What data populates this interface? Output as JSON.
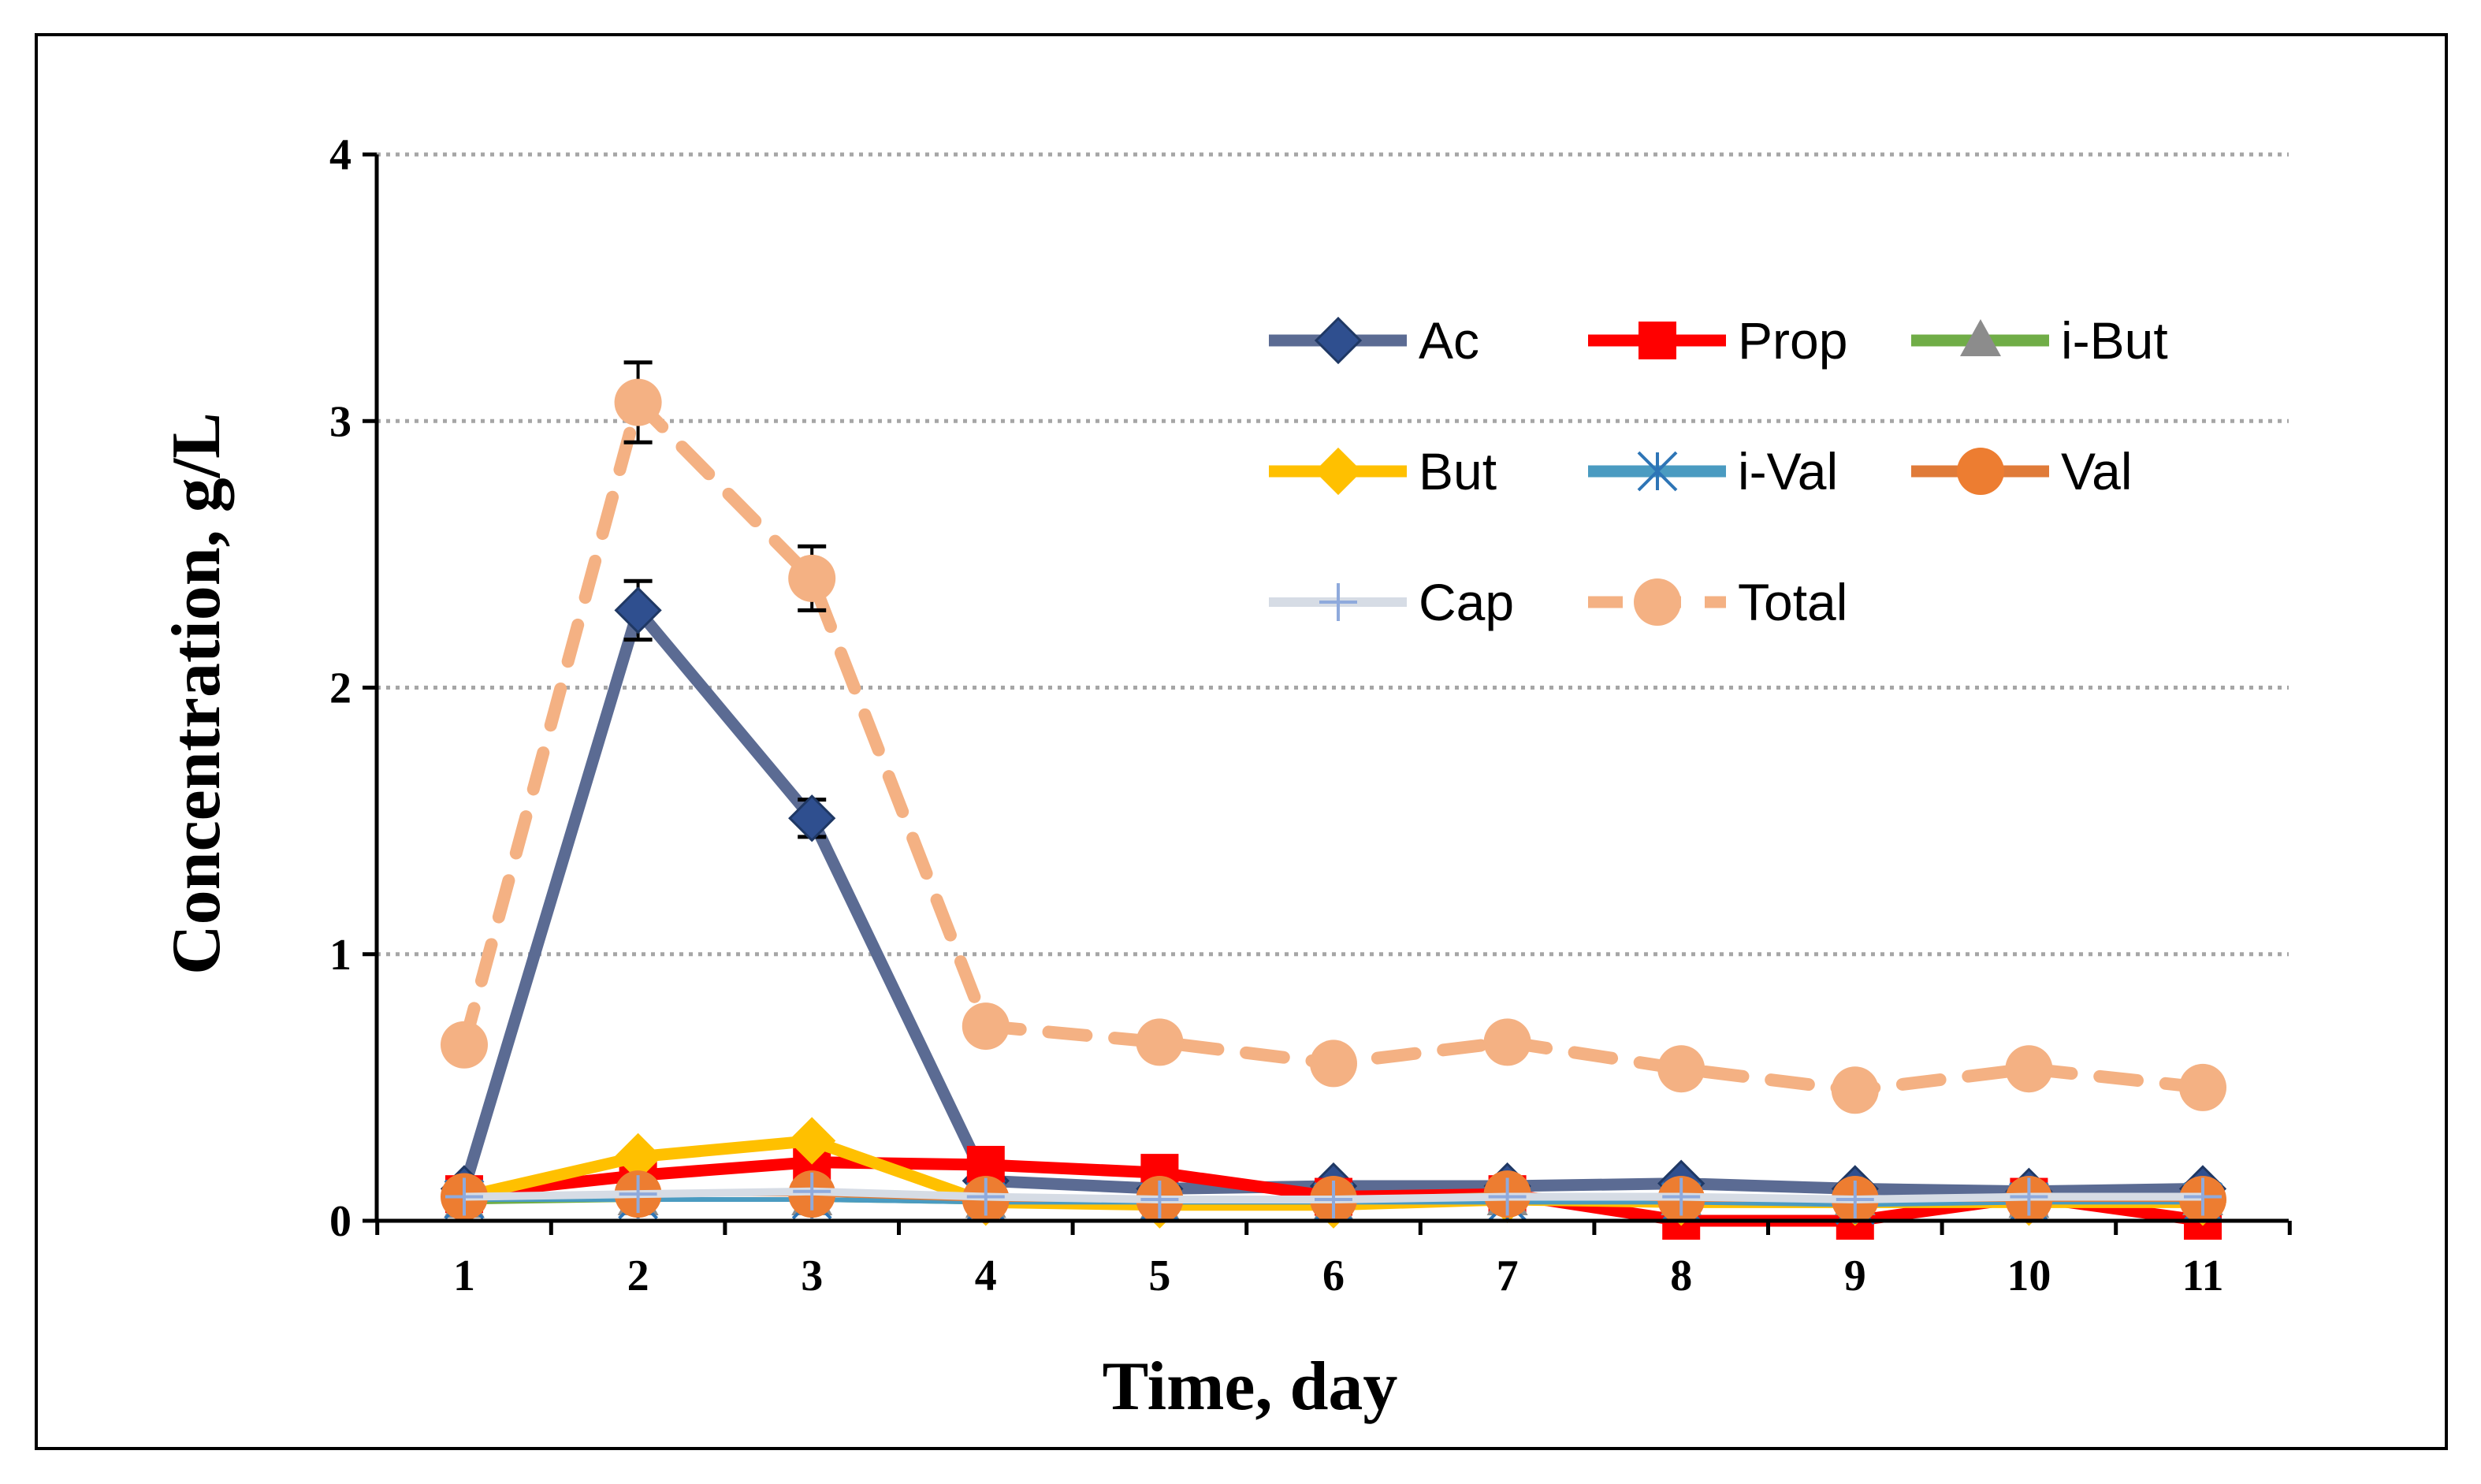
{
  "chart_data": {
    "type": "line",
    "title": "",
    "xlabel": "Time, day",
    "ylabel": "Concentration, g/L",
    "x": [
      1,
      2,
      3,
      4,
      5,
      6,
      7,
      8,
      9,
      10,
      11
    ],
    "x_tick_labels": [
      "1",
      "2",
      "3",
      "4",
      "5",
      "6",
      "7",
      "8",
      "9",
      "10",
      "11"
    ],
    "ylim": [
      0,
      4
    ],
    "y_ticks": [
      0,
      1,
      2,
      3,
      4
    ],
    "y_tick_labels": [
      "0",
      "1",
      "2",
      "3",
      "4"
    ],
    "grid": "horizontal dotted",
    "legend_position": "top-right",
    "series": [
      {
        "name": "Ac",
        "color": "#5b6b93",
        "marker": "diamond",
        "marker_color": "#2f4f8f",
        "dashed": false,
        "values": [
          0.12,
          2.29,
          1.51,
          0.15,
          0.12,
          0.13,
          0.13,
          0.14,
          0.12,
          0.11,
          0.12
        ],
        "error": [
          0,
          0.11,
          0.07,
          0,
          0,
          0,
          0,
          0,
          0,
          0,
          0
        ]
      },
      {
        "name": "Prop",
        "color": "#ff0000",
        "marker": "square",
        "marker_color": "#ff0000",
        "dashed": false,
        "values": [
          0.1,
          0.17,
          0.22,
          0.21,
          0.18,
          0.09,
          0.1,
          0.0,
          0.0,
          0.09,
          0.0
        ],
        "error": [
          0,
          0,
          0,
          0,
          0,
          0,
          0,
          0,
          0,
          0,
          0
        ]
      },
      {
        "name": "i-But",
        "color": "#70ad47",
        "marker": "triangle",
        "marker_color": "#8c8c8c",
        "dashed": false,
        "values": [
          0.07,
          0.08,
          0.08,
          0.07,
          0.06,
          0.06,
          0.08,
          0.08,
          0.08,
          0.07,
          0.08
        ],
        "error": [
          0,
          0,
          0,
          0,
          0,
          0,
          0,
          0,
          0,
          0,
          0
        ]
      },
      {
        "name": "But",
        "color": "#ffc000",
        "marker": "diamond",
        "marker_color": "#ffc000",
        "dashed": false,
        "values": [
          0.09,
          0.24,
          0.3,
          0.07,
          0.06,
          0.06,
          0.08,
          0.07,
          0.07,
          0.07,
          0.07
        ],
        "error": [
          0,
          0,
          0,
          0,
          0,
          0,
          0,
          0,
          0,
          0,
          0
        ]
      },
      {
        "name": "i-Val",
        "color": "#4a9bc1",
        "marker": "asterisk",
        "marker_color": "#2e75b6",
        "dashed": false,
        "values": [
          0.08,
          0.08,
          0.08,
          0.07,
          0.07,
          0.07,
          0.07,
          0.07,
          0.06,
          0.07,
          0.07
        ],
        "error": [
          0,
          0,
          0,
          0,
          0,
          0,
          0,
          0,
          0,
          0,
          0
        ]
      },
      {
        "name": "Val",
        "color": "#e07b39",
        "marker": "circle",
        "marker_color": "#ed7d31",
        "dashed": false,
        "values": [
          0.09,
          0.1,
          0.1,
          0.08,
          0.08,
          0.08,
          0.1,
          0.08,
          0.08,
          0.08,
          0.08
        ],
        "error": [
          0,
          0,
          0,
          0,
          0,
          0,
          0,
          0,
          0,
          0,
          0
        ]
      },
      {
        "name": "Cap",
        "color": "#d6dce5",
        "marker": "plus",
        "marker_color": "#8faadc",
        "dashed": false,
        "values": [
          0.09,
          0.1,
          0.11,
          0.09,
          0.08,
          0.08,
          0.09,
          0.09,
          0.08,
          0.09,
          0.09
        ],
        "error": [
          0,
          0,
          0,
          0,
          0,
          0,
          0,
          0,
          0,
          0,
          0
        ]
      },
      {
        "name": "Total",
        "color": "#f4b183",
        "marker": "circle",
        "marker_color": "#f4b183",
        "dashed": true,
        "values": [
          0.66,
          3.07,
          2.41,
          0.73,
          0.67,
          0.59,
          0.67,
          0.57,
          0.49,
          0.57,
          0.5
        ],
        "error": [
          0,
          0.15,
          0.12,
          0,
          0,
          0,
          0,
          0,
          0,
          0,
          0
        ]
      }
    ]
  }
}
